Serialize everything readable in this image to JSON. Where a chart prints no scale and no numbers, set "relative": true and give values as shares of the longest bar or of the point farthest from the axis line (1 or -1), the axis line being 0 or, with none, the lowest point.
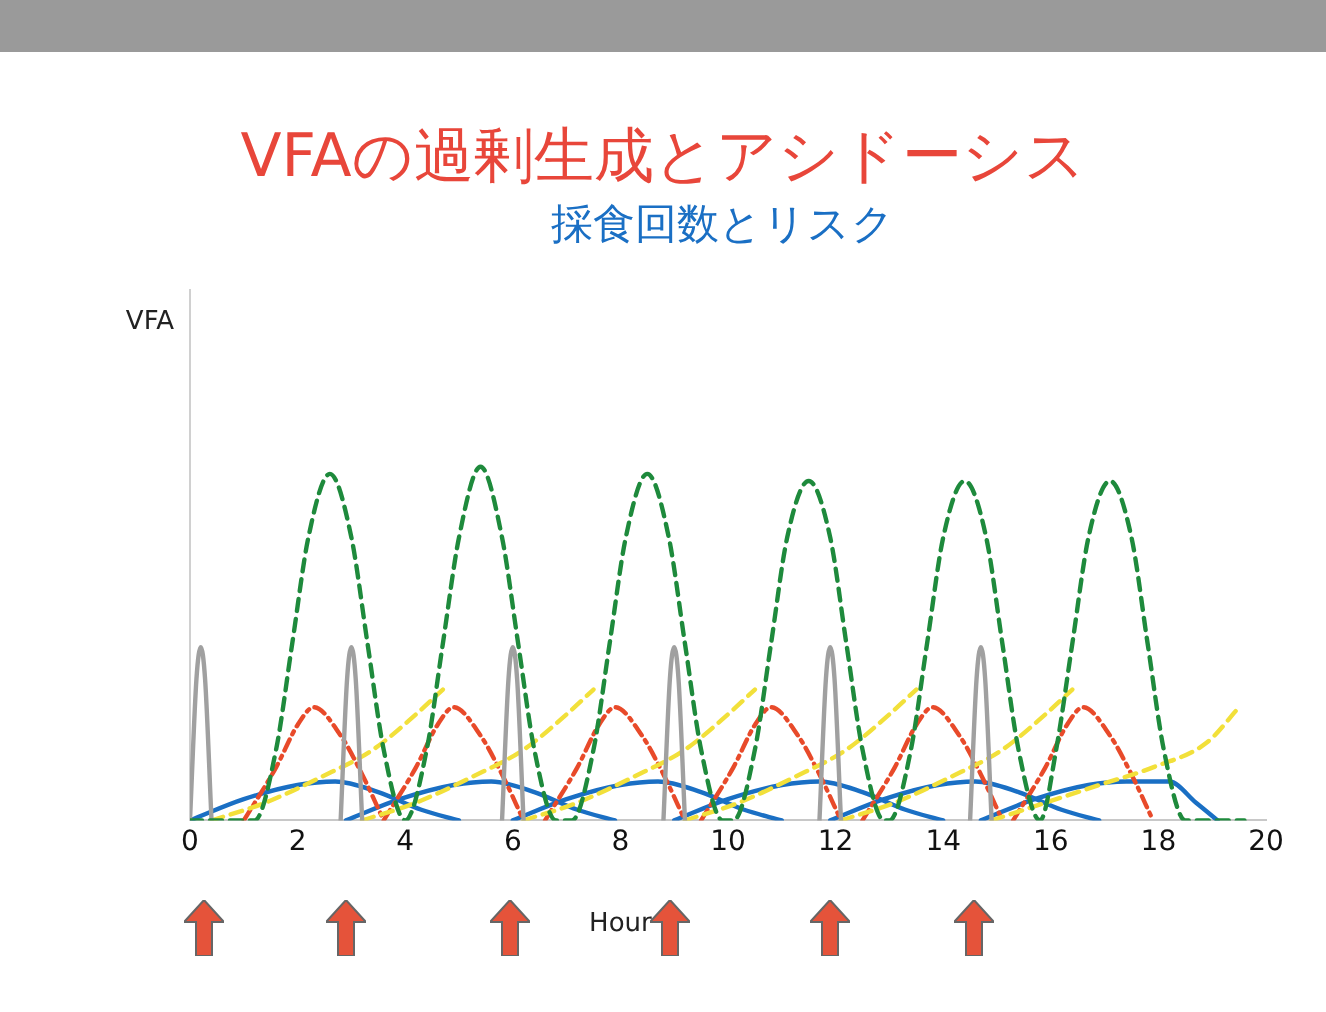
{
  "chart_data": {
    "type": "line",
    "title": "VFAの過剰生成とアシドーシス",
    "subtitle": "採食回数とリスク",
    "xlabel": "Hour",
    "annotations": [
      "VFA"
    ],
    "relative": true,
    "xlim": [
      0,
      20
    ],
    "xticks": [
      0,
      2,
      4,
      6,
      8,
      10,
      12,
      14,
      16,
      18,
      20
    ],
    "legend": false,
    "marker": "none",
    "series": [
      {
        "color": "#1e8a3c",
        "line_style": "dashed",
        "x": [
          0,
          1.2,
          1.6,
          1.9,
          2.2,
          2.6,
          3.0,
          3.3,
          3.6,
          4.0,
          4.4,
          4.7,
          5.0,
          5.4,
          5.8,
          6.1,
          6.4,
          6.8,
          7.1,
          7.5,
          7.8,
          8.1,
          8.5,
          8.9,
          9.2,
          9.5,
          9.9,
          10.1,
          10.5,
          10.8,
          11.1,
          11.5,
          11.9,
          12.2,
          12.5,
          12.9,
          13.0,
          13.4,
          13.7,
          14.0,
          14.4,
          14.8,
          15.1,
          15.4,
          15.8,
          16.1,
          16.4,
          16.7,
          17.1,
          17.5,
          17.8,
          18.1,
          18.5,
          19.6
        ],
        "values": [
          0,
          0,
          0.2,
          0.5,
          0.8,
          0.98,
          0.8,
          0.5,
          0.2,
          0,
          0.2,
          0.5,
          0.8,
          1,
          0.8,
          0.5,
          0.2,
          0,
          0,
          0.2,
          0.5,
          0.8,
          0.98,
          0.8,
          0.5,
          0.2,
          0,
          0,
          0.2,
          0.5,
          0.8,
          0.96,
          0.8,
          0.5,
          0.2,
          0,
          0,
          0.2,
          0.5,
          0.8,
          0.96,
          0.8,
          0.5,
          0.2,
          0,
          0.2,
          0.5,
          0.8,
          0.96,
          0.8,
          0.5,
          0.2,
          0,
          0
        ]
      },
      {
        "color": "#a0a0a0",
        "line_style": "solid",
        "x": [
          0,
          0.12,
          0.2,
          0.28,
          0.4
        ],
        "values": [
          0,
          0.4,
          0.49,
          0.4,
          0
        ]
      },
      {
        "color": "#a0a0a0",
        "line_style": "solid",
        "x": [
          2.8,
          2.92,
          3.0,
          3.08,
          3.2
        ],
        "values": [
          0,
          0.4,
          0.49,
          0.4,
          0
        ]
      },
      {
        "color": "#a0a0a0",
        "line_style": "solid",
        "x": [
          5.8,
          5.92,
          6.0,
          6.08,
          6.2
        ],
        "values": [
          0,
          0.4,
          0.49,
          0.4,
          0
        ]
      },
      {
        "color": "#a0a0a0",
        "line_style": "solid",
        "x": [
          8.8,
          8.92,
          9.0,
          9.08,
          9.2
        ],
        "values": [
          0,
          0.4,
          0.49,
          0.4,
          0
        ]
      },
      {
        "color": "#a0a0a0",
        "line_style": "solid",
        "x": [
          11.7,
          11.82,
          11.9,
          11.98,
          12.1
        ],
        "values": [
          0,
          0.4,
          0.49,
          0.4,
          0
        ]
      },
      {
        "color": "#a0a0a0",
        "line_style": "solid",
        "x": [
          14.5,
          14.62,
          14.7,
          14.78,
          14.9
        ],
        "values": [
          0,
          0.4,
          0.49,
          0.4,
          0
        ]
      },
      {
        "color": "#f2e03a",
        "line_style": "dashed",
        "x": [
          0.4,
          1.4,
          2.4,
          3.4,
          4.2,
          4.7
        ],
        "values": [
          0,
          0.05,
          0.12,
          0.2,
          0.3,
          0.37
        ]
      },
      {
        "color": "#f2e03a",
        "line_style": "dashed",
        "x": [
          3.2,
          4.2,
          5.2,
          6.2,
          7.0,
          7.5
        ],
        "values": [
          0,
          0.05,
          0.12,
          0.2,
          0.3,
          0.37
        ]
      },
      {
        "color": "#f2e03a",
        "line_style": "dashed",
        "x": [
          6.2,
          7.2,
          8.2,
          9.2,
          10.0,
          10.5
        ],
        "values": [
          0,
          0.05,
          0.12,
          0.2,
          0.3,
          0.37
        ]
      },
      {
        "color": "#f2e03a",
        "line_style": "dashed",
        "x": [
          9.2,
          10.2,
          11.2,
          12.2,
          13.0,
          13.5
        ],
        "values": [
          0,
          0.05,
          0.12,
          0.2,
          0.3,
          0.37
        ]
      },
      {
        "color": "#f2e03a",
        "line_style": "dashed",
        "x": [
          12.1,
          13.1,
          14.1,
          15.1,
          15.9,
          16.4
        ],
        "values": [
          0,
          0.05,
          0.12,
          0.2,
          0.3,
          0.37
        ]
      },
      {
        "color": "#f2e03a",
        "line_style": "dashed",
        "x": [
          14.9,
          15.9,
          16.9,
          17.9,
          18.9,
          19.5
        ],
        "values": [
          0,
          0.05,
          0.1,
          0.15,
          0.22,
          0.32
        ]
      },
      {
        "color": "#e84a2a",
        "line_style": "dotted",
        "x": [
          1.0,
          1.6,
          2.0,
          2.3,
          2.8,
          3.2,
          3.6
        ],
        "values": [
          0,
          0.15,
          0.27,
          0.32,
          0.24,
          0.13,
          0
        ]
      },
      {
        "color": "#e84a2a",
        "line_style": "dotted",
        "x": [
          3.6,
          4.2,
          4.6,
          4.9,
          5.4,
          5.8,
          6.2
        ],
        "values": [
          0,
          0.15,
          0.27,
          0.32,
          0.24,
          0.13,
          0
        ]
      },
      {
        "color": "#e84a2a",
        "line_style": "dotted",
        "x": [
          6.6,
          7.2,
          7.6,
          7.9,
          8.4,
          8.8,
          9.2
        ],
        "values": [
          0,
          0.15,
          0.27,
          0.32,
          0.24,
          0.13,
          0
        ]
      },
      {
        "color": "#e84a2a",
        "line_style": "dotted",
        "x": [
          9.5,
          10.1,
          10.5,
          10.8,
          11.3,
          11.7,
          12.1
        ],
        "values": [
          0,
          0.15,
          0.27,
          0.32,
          0.24,
          0.13,
          0
        ]
      },
      {
        "color": "#e84a2a",
        "line_style": "dotted",
        "x": [
          12.5,
          13.1,
          13.5,
          13.8,
          14.3,
          14.7,
          15.1
        ],
        "values": [
          0,
          0.15,
          0.27,
          0.32,
          0.24,
          0.13,
          0
        ]
      },
      {
        "color": "#e84a2a",
        "line_style": "dotted",
        "x": [
          15.3,
          15.9,
          16.3,
          16.6,
          17.1,
          17.5,
          17.9
        ],
        "values": [
          0,
          0.15,
          0.27,
          0.32,
          0.24,
          0.13,
          0
        ]
      },
      {
        "color": "#1a6fc4",
        "line_style": "solid",
        "x": [
          0,
          1,
          2,
          2.7,
          3.5,
          4.3,
          5
        ],
        "values": [
          0,
          0.06,
          0.1,
          0.11,
          0.08,
          0.03,
          0
        ]
      },
      {
        "color": "#1a6fc4",
        "line_style": "solid",
        "x": [
          2.9,
          3.9,
          4.9,
          5.6,
          6.4,
          7.2,
          7.9
        ],
        "values": [
          0,
          0.06,
          0.1,
          0.11,
          0.08,
          0.03,
          0
        ]
      },
      {
        "color": "#1a6fc4",
        "line_style": "solid",
        "x": [
          6,
          7,
          8,
          8.7,
          9.5,
          10.3,
          11
        ],
        "values": [
          0,
          0.06,
          0.1,
          0.11,
          0.08,
          0.03,
          0
        ]
      },
      {
        "color": "#1a6fc4",
        "line_style": "solid",
        "x": [
          9,
          10,
          11,
          11.7,
          12.5,
          13.3,
          14
        ],
        "values": [
          0,
          0.06,
          0.1,
          0.11,
          0.08,
          0.03,
          0
        ]
      },
      {
        "color": "#1a6fc4",
        "line_style": "solid",
        "x": [
          11.9,
          12.9,
          13.9,
          14.6,
          15.4,
          16.2,
          16.9
        ],
        "values": [
          0,
          0.06,
          0.1,
          0.11,
          0.08,
          0.03,
          0
        ]
      },
      {
        "color": "#1a6fc4",
        "line_style": "solid",
        "x": [
          14.7,
          15.7,
          16.7,
          17.4,
          18.2,
          18.7,
          19.1
        ],
        "values": [
          0,
          0.06,
          0.1,
          0.11,
          0.11,
          0.05,
          0
        ]
      }
    ]
  }
}
